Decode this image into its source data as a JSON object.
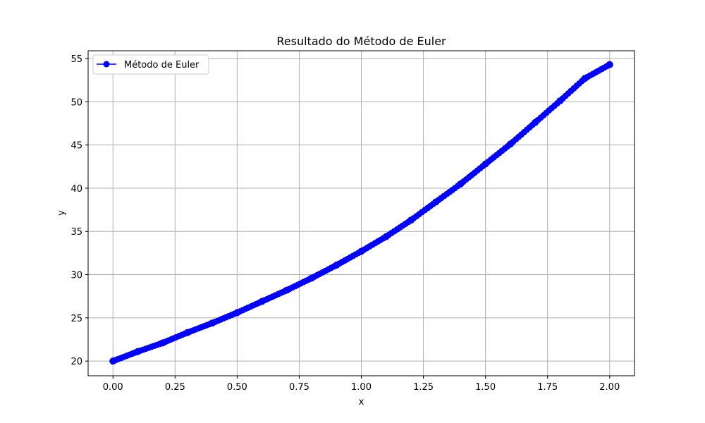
{
  "chart_data": {
    "type": "line",
    "title": "Resultado do Método de Euler",
    "xlabel": "x",
    "ylabel": "y",
    "xlim": [
      -0.1,
      2.1
    ],
    "ylim": [
      18.3,
      55.9
    ],
    "xticks": [
      "0.00",
      "0.25",
      "0.50",
      "0.75",
      "1.00",
      "1.25",
      "1.50",
      "1.75",
      "2.00"
    ],
    "yticks": [
      "20",
      "25",
      "30",
      "35",
      "40",
      "45",
      "50",
      "55"
    ],
    "grid": true,
    "legend": "top-left",
    "colors": {
      "series": "#0000ff",
      "grid": "#b0b0b0"
    },
    "series": [
      {
        "name": "Método de Euler",
        "marker": "circle",
        "x": [
          0.0,
          0.1,
          0.2,
          0.3,
          0.4,
          0.5,
          0.6,
          0.7,
          0.8,
          0.9,
          1.0,
          1.1,
          1.2,
          1.3,
          1.4,
          1.5,
          1.6,
          1.7,
          1.8,
          1.9,
          2.0
        ],
        "y": [
          20.0,
          21.1,
          22.1,
          23.3,
          24.4,
          25.6,
          26.9,
          28.2,
          29.6,
          31.1,
          32.7,
          34.4,
          36.3,
          38.4,
          40.5,
          42.8,
          45.1,
          47.6,
          50.1,
          52.7,
          54.3
        ]
      }
    ]
  }
}
